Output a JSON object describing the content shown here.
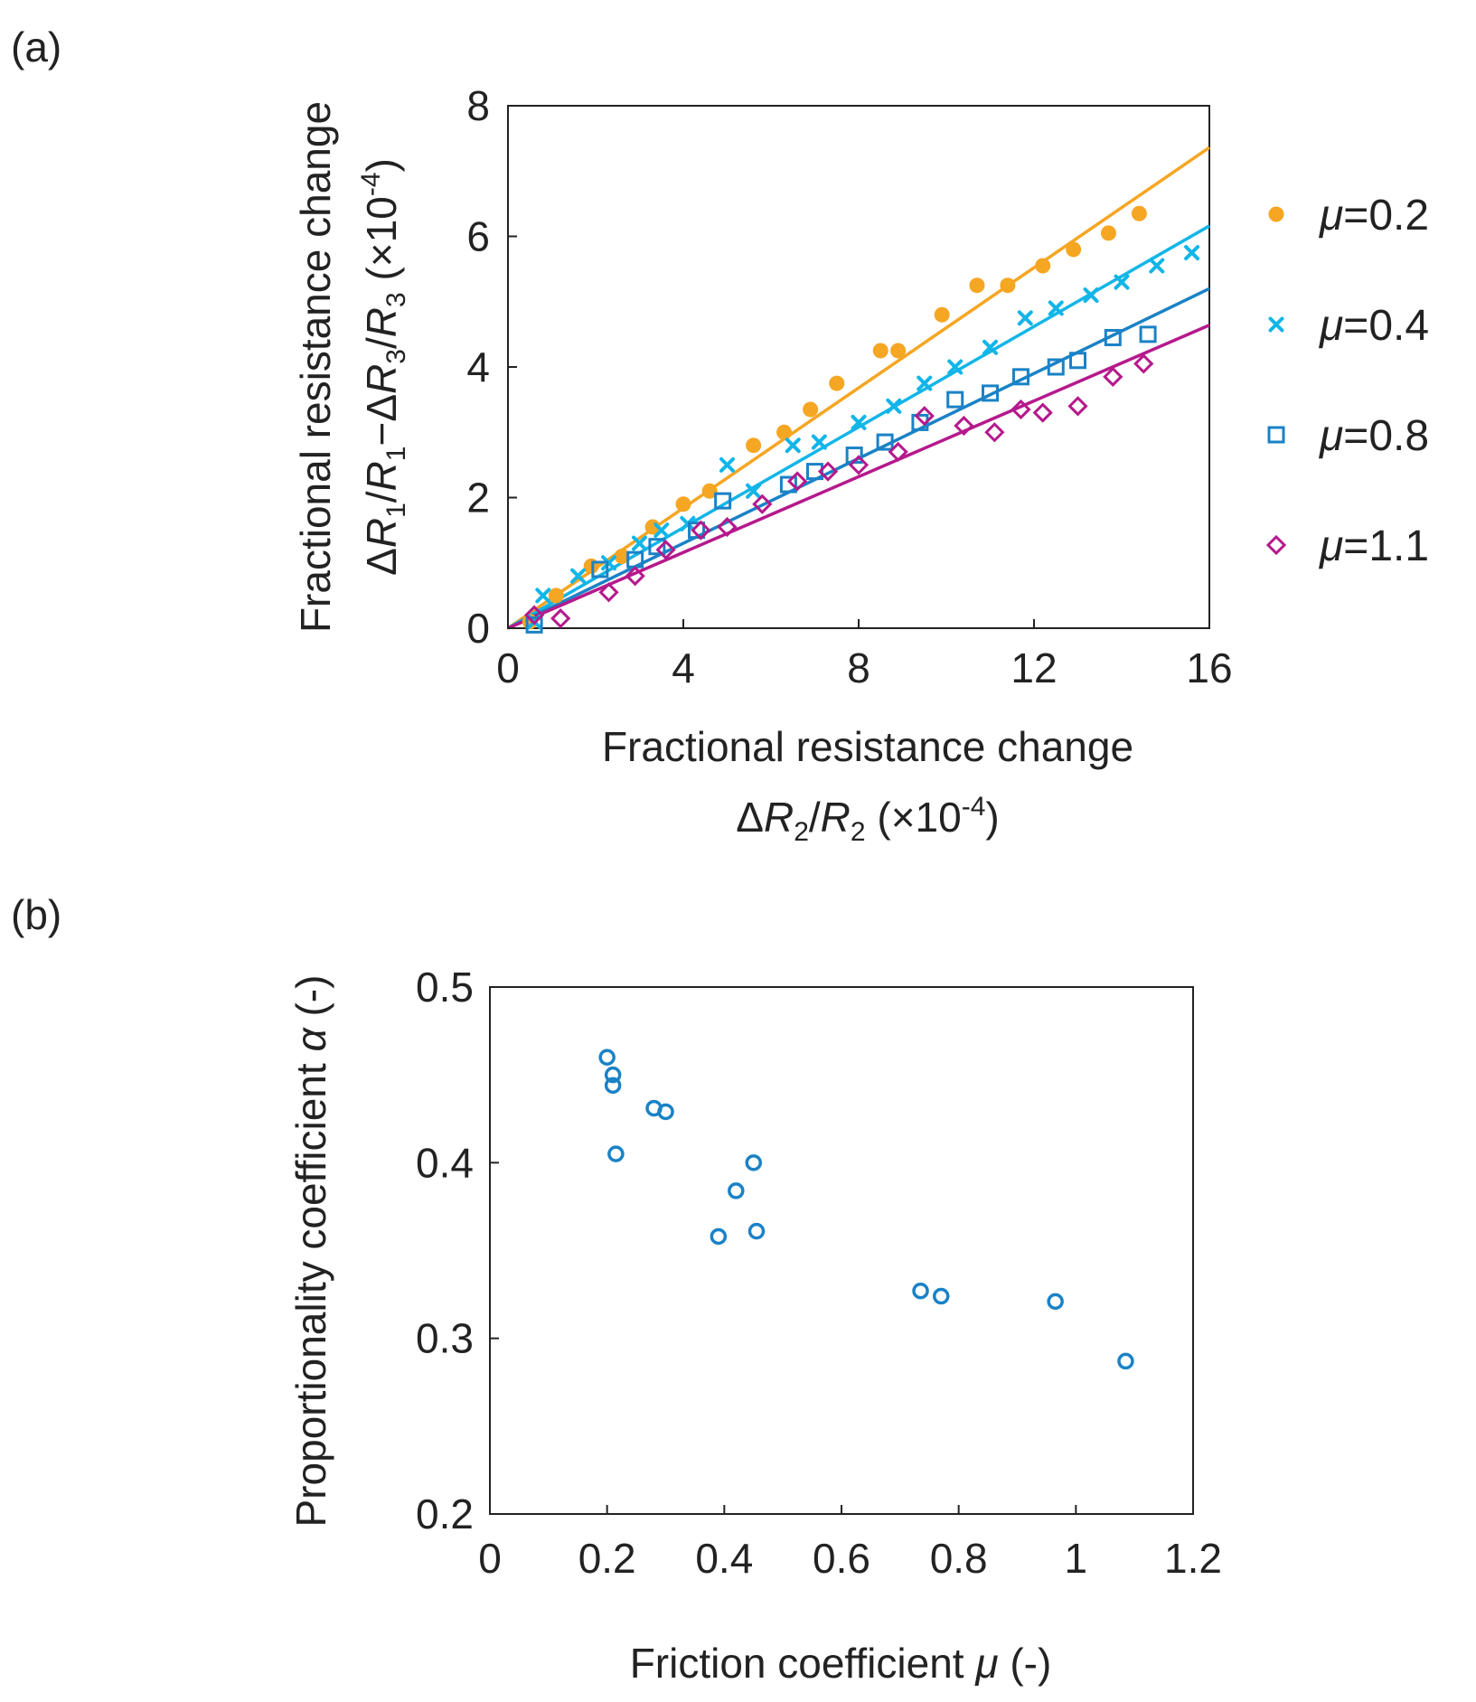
{
  "colors": {
    "mu02": "#F5A623",
    "mu04": "#12B5E8",
    "mu08": "#1A82C6",
    "mu11": "#B5198C",
    "panel_b": "#1A82C6",
    "axis": "#222222"
  },
  "chart_data": [
    {
      "panel_label": "(a)",
      "type": "scatter",
      "title": "",
      "xlabel_line1": "Fractional resistance change",
      "xlabel_line2": "ΔR2/R2 (×10-4)",
      "ylabel_line1": "Fractional resistance change",
      "ylabel_line2": "ΔR1/R1−ΔR3/R3 (×10-4)",
      "xlim": [
        0,
        16
      ],
      "ylim": [
        0,
        8
      ],
      "xticks": [
        0,
        4,
        8,
        12,
        16
      ],
      "yticks": [
        0,
        2,
        4,
        6,
        8
      ],
      "grid": false,
      "legend_position": "right",
      "series": [
        {
          "name": "μ=0.2",
          "legend_mu": "μ",
          "legend_value": "=0.2",
          "marker": "filled-circle",
          "color_key": "mu02",
          "fit_slope": 0.46,
          "x": [
            0.5,
            1.1,
            1.9,
            2.6,
            3.3,
            4.0,
            4.6,
            5.6,
            6.3,
            6.9,
            7.5,
            8.5,
            8.9,
            9.9,
            10.7,
            11.4,
            12.2,
            12.9,
            13.7,
            14.4
          ],
          "y": [
            0.1,
            0.5,
            0.95,
            1.1,
            1.55,
            1.9,
            2.1,
            2.8,
            3.0,
            3.35,
            3.75,
            4.25,
            4.25,
            4.8,
            5.25,
            5.25,
            5.55,
            5.8,
            6.05,
            6.35
          ]
        },
        {
          "name": "μ=0.4",
          "legend_mu": "μ",
          "legend_value": "=0.4",
          "marker": "cross",
          "color_key": "mu04",
          "fit_slope": 0.385,
          "x": [
            0.6,
            0.8,
            1.6,
            2.3,
            3.0,
            3.5,
            4.1,
            5.0,
            5.6,
            6.5,
            7.1,
            8.0,
            8.8,
            9.5,
            10.2,
            11.0,
            11.8,
            12.5,
            13.3,
            14.0,
            14.8,
            15.6
          ],
          "y": [
            0.1,
            0.5,
            0.8,
            1.0,
            1.3,
            1.5,
            1.6,
            2.5,
            2.1,
            2.8,
            2.85,
            3.15,
            3.4,
            3.75,
            4.0,
            4.3,
            4.75,
            4.9,
            5.1,
            5.3,
            5.55,
            5.75
          ]
        },
        {
          "name": "μ=0.8",
          "legend_mu": "μ",
          "legend_value": "=0.8",
          "marker": "open-square",
          "color_key": "mu08",
          "fit_slope": 0.325,
          "x": [
            0.6,
            2.1,
            2.9,
            3.4,
            4.3,
            4.9,
            6.4,
            7.0,
            7.9,
            8.6,
            9.4,
            10.2,
            11.0,
            11.7,
            12.5,
            13.0,
            13.8,
            14.6
          ],
          "y": [
            0.05,
            0.9,
            1.05,
            1.25,
            1.5,
            1.95,
            2.2,
            2.4,
            2.65,
            2.85,
            3.15,
            3.5,
            3.6,
            3.85,
            4.0,
            4.1,
            4.45,
            4.5
          ]
        },
        {
          "name": "μ=1.1",
          "legend_mu": "μ",
          "legend_value": "=1.1",
          "marker": "open-diamond",
          "color_key": "mu11",
          "fit_slope": 0.29,
          "x": [
            0.6,
            1.2,
            2.3,
            2.9,
            3.6,
            4.4,
            5.0,
            5.8,
            6.6,
            7.3,
            8.0,
            8.9,
            9.5,
            10.4,
            11.1,
            11.7,
            12.2,
            13.0,
            13.8,
            14.5
          ],
          "y": [
            0.2,
            0.15,
            0.55,
            0.8,
            1.2,
            1.5,
            1.55,
            1.9,
            2.25,
            2.4,
            2.5,
            2.7,
            3.25,
            3.1,
            3.0,
            3.35,
            3.3,
            3.4,
            3.85,
            4.05
          ]
        }
      ]
    },
    {
      "panel_label": "(b)",
      "type": "scatter",
      "title": "",
      "xlabel": "Friction coefficient μ (-)",
      "ylabel": "Proportionality coefficient α (-)",
      "xlim": [
        0,
        1.2
      ],
      "ylim": [
        0.2,
        0.5
      ],
      "xticks": [
        "0",
        "0.2",
        "0.4",
        "0.6",
        "0.8",
        "1",
        "1.2"
      ],
      "yticks": [
        "0.2",
        "0.3",
        "0.4",
        "0.5"
      ],
      "grid": false,
      "series": [
        {
          "name": "α",
          "marker": "open-circle",
          "color_key": "panel_b",
          "x": [
            0.2,
            0.21,
            0.21,
            0.215,
            0.28,
            0.3,
            0.39,
            0.42,
            0.45,
            0.455,
            0.735,
            0.77,
            0.965,
            1.085
          ],
          "y": [
            0.46,
            0.45,
            0.444,
            0.405,
            0.431,
            0.429,
            0.358,
            0.384,
            0.4,
            0.361,
            0.327,
            0.324,
            0.321,
            0.287
          ]
        }
      ]
    }
  ]
}
